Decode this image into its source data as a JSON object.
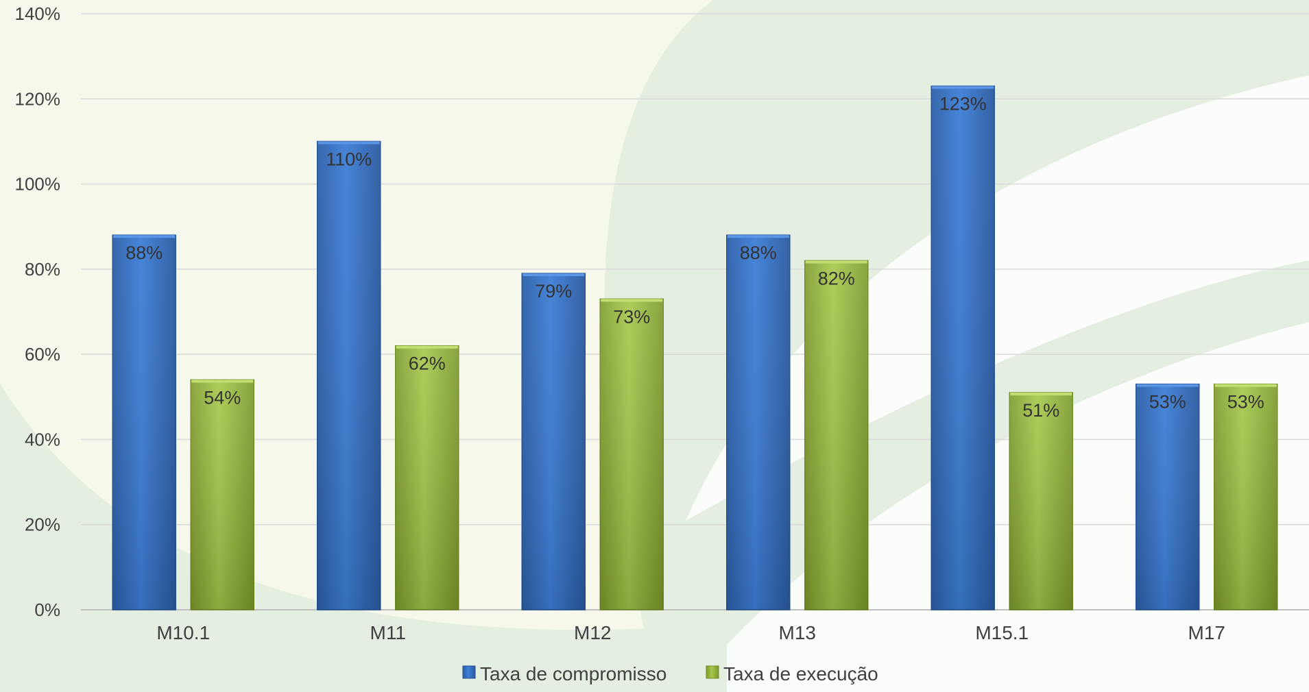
{
  "chart_data": {
    "type": "bar",
    "categories": [
      "M10.1",
      "M11",
      "M12",
      "M13",
      "M15.1",
      "M17"
    ],
    "series": [
      {
        "name": "Taxa de compromisso",
        "values": [
          88,
          110,
          79,
          88,
          123,
          53
        ],
        "labels": [
          "88%",
          "110%",
          "79%",
          "88%",
          "123%",
          "53%"
        ],
        "color": "#3b78cf"
      },
      {
        "name": "Taxa de execução",
        "values": [
          54,
          62,
          73,
          82,
          51,
          53
        ],
        "labels": [
          "54%",
          "62%",
          "73%",
          "82%",
          "51%",
          "53%"
        ],
        "color": "#9bc03e"
      }
    ],
    "ylim": [
      0,
      140
    ],
    "yticks": [
      0,
      20,
      40,
      60,
      80,
      100,
      120,
      140
    ],
    "ytick_labels": [
      "0%",
      "20%",
      "40%",
      "60%",
      "80%",
      "100%",
      "120%",
      "140%"
    ],
    "grid": true,
    "legend_position": "bottom",
    "title": "",
    "xlabel": "",
    "ylabel": ""
  },
  "colors": {
    "background": "#f6f8ec",
    "swoosh": "#e2eee0",
    "grid": "#d9d9d9",
    "axis": "#bfbfbf"
  }
}
